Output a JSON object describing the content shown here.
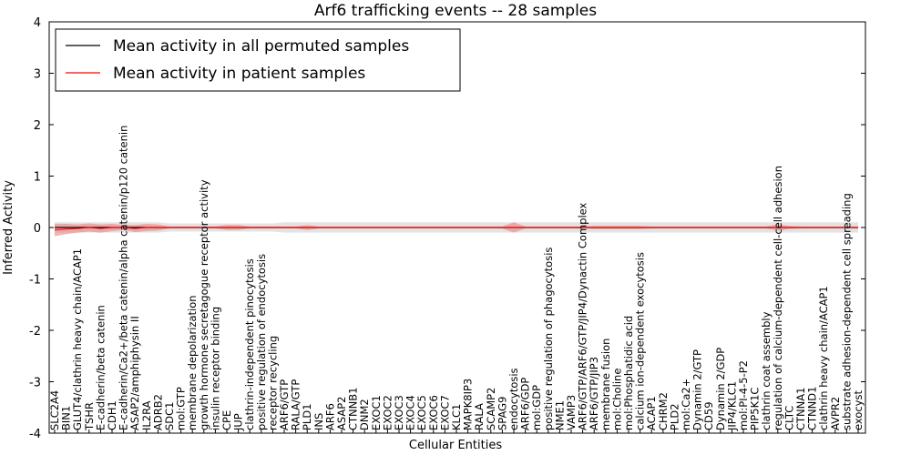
{
  "chart_data": {
    "type": "line",
    "title": "Arf6 trafficking events -- 28 samples",
    "xlabel": "Cellular Entities",
    "ylabel": "Inferred Activity",
    "ylim": [
      -4,
      4
    ],
    "yticks": [
      -4,
      -3,
      -2,
      -1,
      0,
      1,
      2,
      3,
      4
    ],
    "legend_position": "top-left",
    "colors": {
      "permuted": "#000000",
      "patient": "#ff0000",
      "patient_band": "#f08080",
      "permuted_band": "#c0c0c0"
    },
    "categories": [
      "SLC2A4",
      "BIN1",
      "GLUT4/clathrin heavy chain/ACAP1",
      "TSHR",
      "E-cadherin/beta catenin",
      "CDH1",
      "E-cadherin/Ca2+/beta catenin/alpha catenin/p120 catenin",
      "ASAP2/amphiphysin II",
      "IL2RA",
      "ADRB2",
      "SDC1",
      "mol:GTP",
      "membrane depolarization",
      "growth hormone secretagogue receptor activity",
      "insulin receptor binding",
      "CPE",
      "JUP",
      "clathrin-independent pinocytosis",
      "positive regulation of endocytosis",
      "receptor recycling",
      "ARF6/GTP",
      "RALA/GTP",
      "PLD1",
      "INS",
      "ARF6",
      "ASAP2",
      "CTNNB1",
      "DNM2",
      "EXOC1",
      "EXOC2",
      "EXOC3",
      "EXOC4",
      "EXOC5",
      "EXOC6",
      "EXOC7",
      "KLC1",
      "MAPK8IP3",
      "RALA",
      "SCAMP2",
      "SPAG9",
      "endocytosis",
      "ARF6/GDP",
      "mol:GDP",
      "positive regulation of phagocytosis",
      "NME1",
      "VAMP3",
      "ARF6/GTP/ARF6/GTP/JIP4/Dynactin Complex",
      "ARF6/GTP/JIP3",
      "membrane fusion",
      "mol:Choline",
      "mol:Phosphatidic acid",
      "calcium ion-dependent exocytosis",
      "ACAP1",
      "CHRM2",
      "PLD2",
      "mol:Ca2+",
      "Dynamin 2/GTP",
      "CD59",
      "Dynamin 2/GDP",
      "JIP4/KLC1",
      "mol:PI-4-5-P2",
      "PIP5K1C",
      "clathrin coat assembly",
      "regulation of calcium-dependent cell-cell adhesion",
      "CLTC",
      "CTNNA1",
      "CTNND1",
      "clathrin heavy chain/ACAP1",
      "AVPR2",
      "substrate adhesion-dependent cell spreading",
      "exocyst"
    ],
    "series": [
      {
        "name": "Mean activity in all permuted samples",
        "values": [
          0.0,
          0.0,
          0.0,
          0.0,
          0.0,
          0.0,
          0.0,
          0.0,
          0.0,
          0.0,
          0.0,
          0.0,
          0.0,
          0.0,
          0.0,
          0.0,
          0.0,
          0.0,
          0.0,
          0.0,
          0.0,
          0.0,
          0.0,
          0.0,
          0.0,
          0.0,
          0.0,
          0.0,
          0.0,
          0.0,
          0.0,
          0.0,
          0.0,
          0.0,
          0.0,
          0.0,
          0.0,
          0.0,
          0.0,
          0.0,
          0.0,
          0.0,
          0.0,
          0.0,
          0.0,
          0.0,
          0.0,
          0.0,
          0.0,
          0.0,
          0.0,
          0.0,
          0.0,
          0.0,
          0.0,
          0.0,
          0.0,
          0.0,
          0.0,
          0.0,
          0.0,
          0.0,
          0.0,
          0.0,
          0.0,
          0.0,
          0.0,
          0.0,
          0.0,
          0.0,
          0.0
        ],
        "spread": [
          0.1,
          0.1,
          0.1,
          0.1,
          0.1,
          0.1,
          0.1,
          0.1,
          0.1,
          0.1,
          0.08,
          0.08,
          0.08,
          0.08,
          0.08,
          0.08,
          0.08,
          0.08,
          0.08,
          0.08,
          0.1,
          0.1,
          0.1,
          0.1,
          0.1,
          0.1,
          0.1,
          0.1,
          0.1,
          0.1,
          0.1,
          0.1,
          0.1,
          0.1,
          0.1,
          0.1,
          0.1,
          0.1,
          0.1,
          0.1,
          0.1,
          0.1,
          0.1,
          0.1,
          0.1,
          0.1,
          0.1,
          0.1,
          0.1,
          0.1,
          0.1,
          0.1,
          0.1,
          0.1,
          0.1,
          0.1,
          0.1,
          0.1,
          0.1,
          0.1,
          0.1,
          0.1,
          0.1,
          0.1,
          0.1,
          0.1,
          0.1,
          0.1,
          0.1,
          0.1,
          0.1
        ]
      },
      {
        "name": "Mean activity in patient samples",
        "values": [
          -0.05,
          -0.03,
          -0.02,
          0.0,
          -0.02,
          0.0,
          0.0,
          -0.02,
          0.0,
          0.0,
          0.0,
          0.0,
          0.0,
          0.0,
          0.0,
          0.0,
          0.0,
          0.0,
          0.0,
          0.0,
          0.0,
          0.0,
          0.0,
          0.0,
          0.0,
          0.0,
          0.0,
          0.0,
          0.0,
          0.0,
          0.0,
          0.0,
          0.0,
          0.0,
          0.0,
          0.0,
          0.0,
          0.0,
          0.0,
          0.0,
          0.0,
          0.0,
          0.0,
          0.0,
          0.0,
          0.0,
          0.0,
          0.0,
          0.0,
          0.0,
          0.0,
          0.0,
          0.0,
          0.0,
          0.0,
          0.0,
          0.0,
          0.0,
          0.0,
          0.0,
          0.0,
          0.0,
          0.0,
          0.0,
          0.0,
          0.0,
          0.0,
          0.0,
          0.0,
          0.0,
          0.0
        ],
        "spread": [
          0.12,
          0.1,
          0.08,
          0.08,
          0.08,
          0.07,
          0.05,
          0.07,
          0.07,
          0.06,
          0.02,
          0.02,
          0.02,
          0.02,
          0.02,
          0.05,
          0.05,
          0.02,
          0.02,
          0.02,
          0.02,
          0.02,
          0.05,
          0.02,
          0.02,
          0.02,
          0.02,
          0.02,
          0.02,
          0.02,
          0.02,
          0.02,
          0.02,
          0.02,
          0.02,
          0.02,
          0.02,
          0.02,
          0.02,
          0.02,
          0.1,
          0.02,
          0.02,
          0.02,
          0.02,
          0.02,
          0.02,
          0.03,
          0.03,
          0.03,
          0.03,
          0.03,
          0.02,
          0.02,
          0.02,
          0.02,
          0.02,
          0.02,
          0.02,
          0.02,
          0.02,
          0.02,
          0.02,
          0.06,
          0.03,
          0.02,
          0.02,
          0.02,
          0.02,
          0.02,
          0.02
        ]
      }
    ]
  }
}
